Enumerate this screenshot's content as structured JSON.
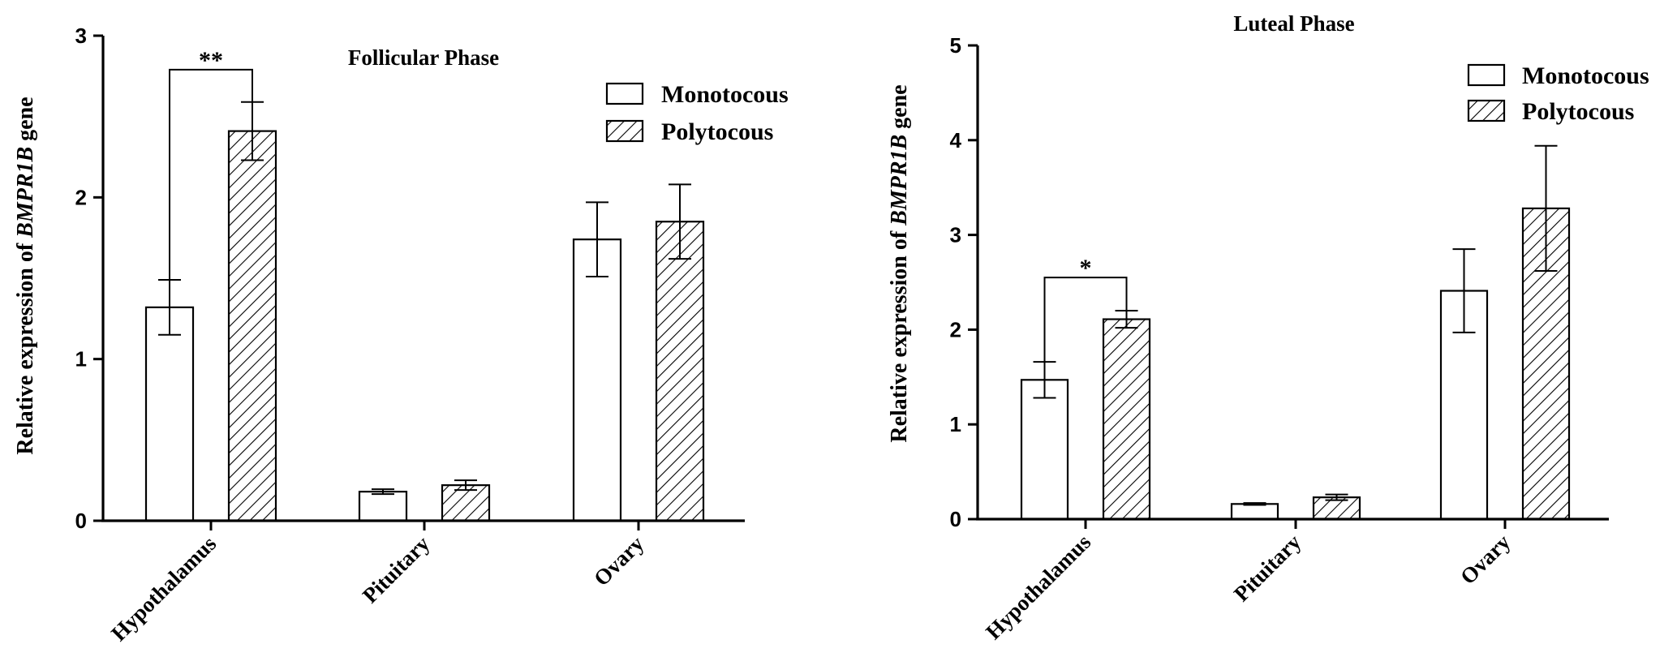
{
  "chart_data": [
    {
      "type": "bar",
      "title": "Follicular Phase",
      "ylabel": "Relative expression of BMPR1B gene",
      "ylabel_parts": {
        "pre": "Relative expression of ",
        "gene": "BMPR1B",
        "post": " gene"
      },
      "xlabel": "",
      "ylim": [
        0,
        3
      ],
      "yticks": [
        0,
        1,
        2,
        3
      ],
      "categories": [
        "Hypothalamus",
        "Pituitary",
        "Ovary"
      ],
      "series": [
        {
          "name": "Monotocous",
          "pattern": "open",
          "values": [
            1.32,
            0.18,
            1.74
          ],
          "errors": [
            0.17,
            0.015,
            0.23
          ]
        },
        {
          "name": "Polytocous",
          "pattern": "hatched",
          "values": [
            2.41,
            0.22,
            1.85
          ],
          "errors": [
            0.18,
            0.03,
            0.23
          ]
        }
      ],
      "legend": [
        "Monotocous",
        "Polytocous"
      ],
      "legend_position": "top-right",
      "annotations": [
        {
          "category": "Hypothalamus",
          "text": "**",
          "bracket_height": 2.79
        }
      ]
    },
    {
      "type": "bar",
      "title": "Luteal Phase",
      "ylabel": "Relative expression of BMPR1B gene",
      "ylabel_parts": {
        "pre": "Relative expression of ",
        "gene": "BMPR1B",
        "post": " gene"
      },
      "xlabel": "",
      "ylim": [
        0,
        5
      ],
      "yticks": [
        0,
        1,
        2,
        3,
        4,
        5
      ],
      "categories": [
        "Hypothalamus",
        "Pituitary",
        "Ovary"
      ],
      "series": [
        {
          "name": "Monotocous",
          "pattern": "open",
          "values": [
            1.47,
            0.16,
            2.41
          ],
          "errors": [
            0.19,
            0.01,
            0.44
          ]
        },
        {
          "name": "Polytocous",
          "pattern": "hatched",
          "values": [
            2.11,
            0.23,
            3.28
          ],
          "errors": [
            0.09,
            0.03,
            0.66
          ]
        }
      ],
      "legend": [
        "Monotocous",
        "Polytocous"
      ],
      "legend_position": "top-right",
      "annotations": [
        {
          "category": "Hypothalamus",
          "text": "*",
          "bracket_height": 2.55
        }
      ]
    }
  ]
}
